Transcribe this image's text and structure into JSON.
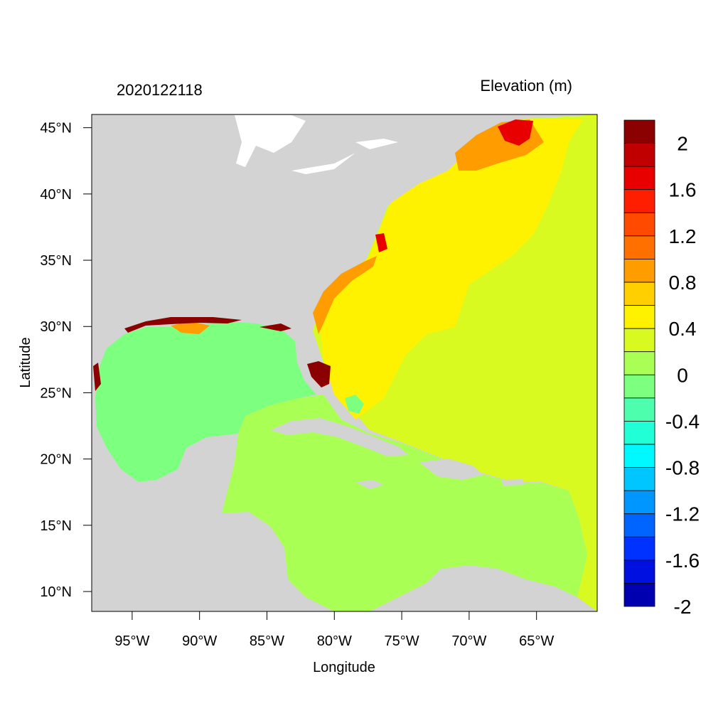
{
  "header": {
    "timestamp": "2020122118",
    "variable": "Elevation (m)"
  },
  "axes": {
    "xlabel": "Longitude",
    "ylabel": "Latitude",
    "xlim": [
      -98.0,
      -60.5
    ],
    "ylim": [
      8.5,
      46.0
    ],
    "x_ticks": [
      {
        "value": -95,
        "label": "95°W"
      },
      {
        "value": -90,
        "label": "90°W"
      },
      {
        "value": -85,
        "label": "85°W"
      },
      {
        "value": -80,
        "label": "80°W"
      },
      {
        "value": -75,
        "label": "75°W"
      },
      {
        "value": -70,
        "label": "70°W"
      },
      {
        "value": -65,
        "label": "65°W"
      }
    ],
    "y_ticks": [
      {
        "value": 45,
        "label": "45°N"
      },
      {
        "value": 40,
        "label": "40°N"
      },
      {
        "value": 35,
        "label": "35°N"
      },
      {
        "value": 30,
        "label": "30°N"
      },
      {
        "value": 25,
        "label": "25°N"
      },
      {
        "value": 20,
        "label": "20°N"
      },
      {
        "value": 15,
        "label": "15°N"
      },
      {
        "value": 10,
        "label": "10°N"
      }
    ]
  },
  "colorbar": {
    "bins_top_to_bottom": [
      {
        "color": "#8b0000"
      },
      {
        "color": "#c00000"
      },
      {
        "color": "#e80000"
      },
      {
        "color": "#ff1e00"
      },
      {
        "color": "#ff4a00"
      },
      {
        "color": "#ff7000"
      },
      {
        "color": "#ff9c00"
      },
      {
        "color": "#ffcf00"
      },
      {
        "color": "#fff200"
      },
      {
        "color": "#d8fa20"
      },
      {
        "color": "#aaff55"
      },
      {
        "color": "#7dff80"
      },
      {
        "color": "#4dffad"
      },
      {
        "color": "#20ffd6"
      },
      {
        "color": "#00f8ff"
      },
      {
        "color": "#00c6ff"
      },
      {
        "color": "#0096ff"
      },
      {
        "color": "#0064ff"
      },
      {
        "color": "#0032ff"
      },
      {
        "color": "#0010e0"
      },
      {
        "color": "#0000b0"
      }
    ],
    "tick_labels_top_to_bottom": [
      "2",
      "1.6",
      "1.2",
      "0.8",
      "0.4",
      "0",
      "-0.4",
      "-0.8",
      "-1.2",
      "-1.6",
      "-2"
    ]
  },
  "colors": {
    "land": "#d3d3d3",
    "lake": "#ffffff",
    "gulf": "#7dff80",
    "caribbean": "#aaff55",
    "atlantic": "#d8fa20",
    "nearshore": "#fff200",
    "surge_orange": "#ff9c00",
    "surge_red": "#e80000",
    "surge_darkred": "#8b0000"
  }
}
